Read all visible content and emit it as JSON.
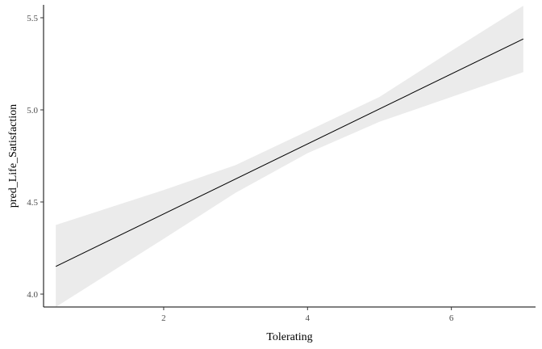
{
  "chart_data": {
    "type": "line",
    "title": "",
    "xlabel": "Tolerating",
    "ylabel": "pred_Life_Satisfaction",
    "xlim": [
      0.33,
      7.17
    ],
    "ylim": [
      3.93,
      5.57
    ],
    "x_ticks": [
      2,
      4,
      6
    ],
    "y_ticks": [
      4.0,
      4.5,
      5.0,
      5.5
    ],
    "x_tick_labels": [
      "2",
      "4",
      "6"
    ],
    "y_tick_labels": [
      "4.0",
      "4.5",
      "5.0",
      "5.5"
    ],
    "grid": false,
    "legend": "none",
    "series": [
      {
        "x": [
          0.5,
          7.0
        ],
        "y": [
          4.15,
          5.385
        ]
      }
    ],
    "confidence_band": {
      "x": [
        0.5,
        2.0,
        3.0,
        4.0,
        5.0,
        6.0,
        7.0
      ],
      "lower": [
        3.93,
        4.3,
        4.55,
        4.765,
        4.935,
        5.07,
        5.205
      ],
      "upper": [
        4.375,
        4.565,
        4.7,
        4.885,
        5.07,
        5.32,
        5.565
      ]
    },
    "colors": {
      "line": "#000000",
      "band": "#ebebeb",
      "axis": "#000000",
      "tick_label": "#4d4d4d"
    }
  }
}
